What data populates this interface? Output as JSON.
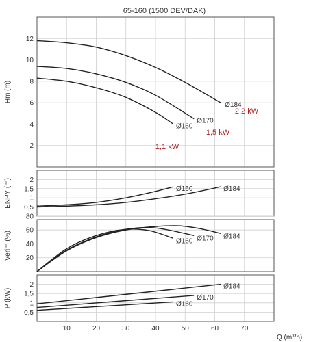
{
  "colors": {
    "curve": "#222222",
    "power_label": "#b22222",
    "grid": "#cfcfcf",
    "frame": "#555555"
  },
  "chart_data": {
    "type": "line",
    "title": "65-160 (1500 DEV/DAK)",
    "grid": true,
    "x": {
      "label": "Q (m³/h)",
      "range": [
        0,
        80
      ],
      "ticks": [
        10,
        20,
        30,
        40,
        50,
        60,
        70
      ]
    },
    "panels": [
      {
        "id": "hm",
        "ylabel": "Hm (m)",
        "ylim": [
          0,
          14
        ],
        "yticks": [
          "2",
          "4",
          "6",
          "8",
          "10",
          "12"
        ],
        "ytick_values": [
          2,
          4,
          6,
          8,
          10,
          12
        ],
        "series": [
          {
            "name": "Ø184",
            "x": [
              0,
              10,
              20,
              30,
              40,
              50,
              62
            ],
            "y": [
              11.8,
              11.6,
              11.2,
              10.4,
              9.3,
              7.9,
              6.0
            ]
          },
          {
            "name": "Ø170",
            "x": [
              0,
              10,
              20,
              30,
              40,
              53
            ],
            "y": [
              9.4,
              9.2,
              8.7,
              7.9,
              6.7,
              4.5
            ]
          },
          {
            "name": "Ø160",
            "x": [
              0,
              10,
              20,
              30,
              40,
              46
            ],
            "y": [
              8.3,
              8.0,
              7.4,
              6.5,
              5.1,
              4.0
            ]
          }
        ],
        "power_labels": [
          "1,1 kW",
          "1,5 kW",
          "2,2 kW"
        ]
      },
      {
        "id": "npsh",
        "ylabel": "ENPY (m)",
        "ylim": [
          0,
          2.5
        ],
        "yticks": [
          "0,5",
          "1",
          "1,5",
          "2"
        ],
        "ytick_values": [
          0.5,
          1,
          1.5,
          2
        ],
        "series": [
          {
            "name": "Ø160",
            "x": [
              0,
              10,
              20,
              30,
              40,
              46
            ],
            "y": [
              0.55,
              0.62,
              0.75,
              1.0,
              1.35,
              1.6
            ]
          },
          {
            "name": "Ø184",
            "x": [
              0,
              10,
              20,
              30,
              40,
              50,
              62
            ],
            "y": [
              0.5,
              0.55,
              0.62,
              0.75,
              0.95,
              1.2,
              1.6
            ]
          }
        ]
      },
      {
        "id": "eff",
        "ylabel": "Verim (%)",
        "ylim": [
          0,
          75
        ],
        "yticks": [
          "20",
          "40",
          "60",
          "80"
        ],
        "ytick_values": [
          20,
          40,
          60,
          80
        ],
        "series": [
          {
            "name": "Ø160",
            "x": [
              0,
              10,
              20,
              30,
              38,
              46
            ],
            "y": [
              0,
              33,
              52,
              61,
              59,
              48
            ]
          },
          {
            "name": "Ø170",
            "x": [
              0,
              10,
              20,
              30,
              40,
              53
            ],
            "y": [
              0,
              31,
              50,
              61,
              63,
              52
            ]
          },
          {
            "name": "Ø184",
            "x": [
              0,
              10,
              20,
              30,
              40,
              48,
              55,
              62
            ],
            "y": [
              0,
              30,
              49,
              60,
              65,
              66,
              62,
              55
            ]
          }
        ]
      },
      {
        "id": "power",
        "ylabel": "P (kW)",
        "ylim": [
          0,
          2.5
        ],
        "yticks": [
          "0,5",
          "1",
          "1,5",
          "2"
        ],
        "ytick_values": [
          0.5,
          1,
          1.5,
          2
        ],
        "series": [
          {
            "name": "Ø184",
            "x": [
              0,
              62
            ],
            "y": [
              0.95,
              2.0
            ]
          },
          {
            "name": "Ø170",
            "x": [
              0,
              53
            ],
            "y": [
              0.75,
              1.4
            ]
          },
          {
            "name": "Ø160",
            "x": [
              0,
              46
            ],
            "y": [
              0.6,
              1.05
            ]
          }
        ]
      }
    ]
  }
}
